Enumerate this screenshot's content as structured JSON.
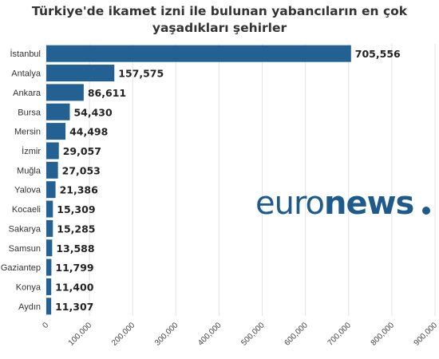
{
  "chart_data": {
    "type": "bar",
    "orientation": "horizontal",
    "title": "Türkiye'de ikamet izni ile bulunan yabancıların en çok yaşadıkları şehirler",
    "categories": [
      "İstanbul",
      "Antalya",
      "Ankara",
      "Bursa",
      "Mersin",
      "İzmir",
      "Muğla",
      "Yalova",
      "Kocaeli",
      "Sakarya",
      "Samsun",
      "Gaziantep",
      "Konya",
      "Aydın"
    ],
    "values": [
      705556,
      157575,
      86611,
      54430,
      44498,
      29057,
      27053,
      21386,
      15309,
      15285,
      13588,
      11799,
      11400,
      11307
    ],
    "value_labels": [
      "705,556",
      "157,575",
      "86,611",
      "54,430",
      "44,498",
      "29,057",
      "27,053",
      "21,386",
      "15,309",
      "15,285",
      "13,588",
      "11,799",
      "11,400",
      "11,307"
    ],
    "xticks": [
      0,
      100000,
      200000,
      300000,
      400000,
      500000,
      600000,
      700000,
      800000,
      900000
    ],
    "xtick_labels": [
      "0",
      "100,000",
      "200,000",
      "300,000",
      "400,000",
      "500,000",
      "600,000",
      "700,000",
      "800,000",
      "900,000"
    ],
    "xlim": [
      0,
      900000
    ],
    "grid": true,
    "legend": false,
    "bar_color": "#236192"
  },
  "watermark": {
    "text_light": "euro",
    "text_bold": "news",
    "color": "#1e5a8a"
  }
}
